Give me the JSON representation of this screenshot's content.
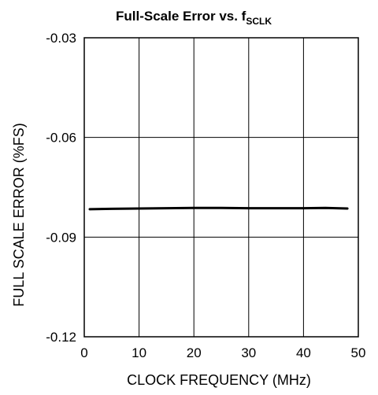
{
  "chart_data": {
    "type": "line",
    "title_main": "Full-Scale Error vs. f",
    "title_subscript": "SCLK",
    "xlabel": "CLOCK FREQUENCY (MHz)",
    "ylabel": "FULL SCALE ERROR (%FS)",
    "xlim": [
      0,
      50
    ],
    "ylim": [
      -0.12,
      -0.03
    ],
    "x_ticks": [
      0,
      10,
      20,
      30,
      40,
      50
    ],
    "x_tick_labels": [
      "0",
      "10",
      "20",
      "30",
      "40",
      "50"
    ],
    "y_ticks": [
      -0.03,
      -0.06,
      -0.09,
      -0.12
    ],
    "y_tick_labels": [
      "-0.03",
      "-0.06",
      "-0.09",
      "-0.12"
    ],
    "grid": true,
    "series": [
      {
        "x": [
          1,
          5,
          10,
          15,
          20,
          25,
          30,
          35,
          40,
          44,
          48
        ],
        "y": [
          -0.0816,
          -0.0815,
          -0.0814,
          -0.0813,
          -0.0812,
          -0.0812,
          -0.0813,
          -0.0813,
          -0.0813,
          -0.0812,
          -0.0814
        ]
      }
    ],
    "colors": {
      "line": "#000000",
      "grid": "#000000"
    }
  }
}
